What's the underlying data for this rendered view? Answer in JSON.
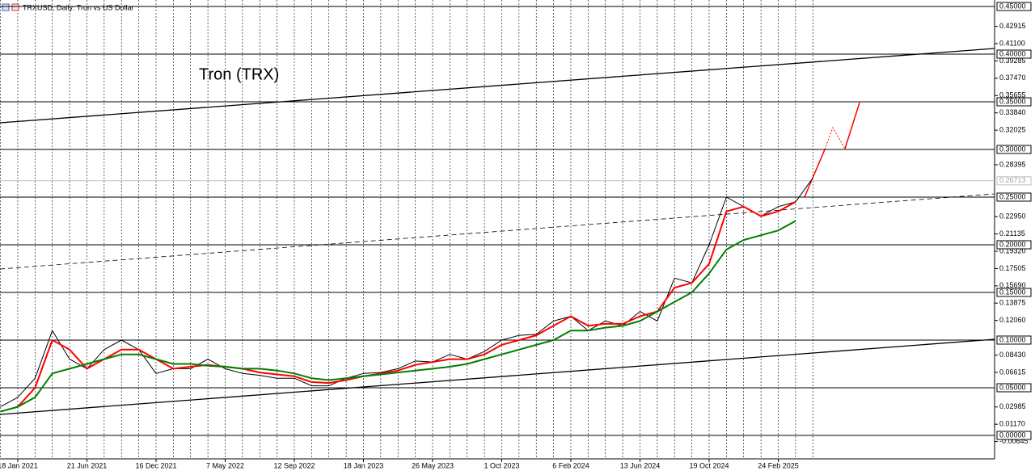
{
  "header": "TRXUSD, Daily:  Tron vs US Dollar",
  "chart_data": {
    "type": "line",
    "title": "Tron (TRX)",
    "categories": [
      null,
      "18 Jan 2021",
      null,
      null,
      null,
      "21 Jun 2021",
      null,
      null,
      null,
      "16 Dec 2021",
      null,
      null,
      null,
      "7 May 2022",
      null,
      null,
      null,
      "12 Sep 2022",
      null,
      null,
      null,
      "18 Jan 2023",
      null,
      null,
      null,
      "26 May 2023",
      null,
      null,
      null,
      "1 Oct 2023",
      null,
      null,
      null,
      "6 Feb 2024",
      null,
      null,
      null,
      "13 Jun 2024",
      null,
      null,
      null,
      "19 Oct 2024",
      null,
      null,
      null,
      "24 Feb 2025",
      null,
      null
    ],
    "series": [
      {
        "color": "#000000",
        "width": 1,
        "values": [
          0.03,
          0.04,
          0.06,
          0.11,
          0.08,
          0.07,
          0.09,
          0.1,
          0.09,
          0.065,
          0.07,
          0.07,
          0.08,
          0.07,
          0.065,
          0.063,
          0.06,
          0.06,
          0.052,
          0.052,
          0.06,
          0.065,
          0.066,
          0.07,
          0.078,
          0.077,
          0.085,
          0.08,
          0.088,
          0.1,
          0.105,
          0.106,
          0.12,
          0.125,
          0.11,
          0.12,
          0.115,
          0.13,
          0.12,
          0.165,
          0.16,
          0.2,
          0.25,
          0.24,
          0.23,
          0.24,
          0.245,
          0.27
        ]
      },
      {
        "color": "#ff0000",
        "width": 2,
        "values": [
          null,
          0.03,
          0.05,
          0.1,
          0.09,
          0.07,
          0.08,
          0.09,
          0.09,
          0.08,
          0.07,
          0.072,
          0.074,
          0.072,
          0.07,
          0.066,
          0.064,
          0.062,
          0.056,
          0.055,
          0.058,
          0.062,
          0.065,
          0.068,
          0.074,
          0.077,
          0.08,
          0.08,
          0.085,
          0.095,
          0.1,
          0.105,
          0.115,
          0.125,
          0.115,
          0.117,
          0.117,
          0.125,
          0.13,
          0.155,
          0.16,
          0.18,
          0.235,
          0.24,
          0.23,
          0.235,
          0.245,
          null
        ]
      },
      {
        "color": "#008000",
        "width": 2,
        "values": [
          0.025,
          0.03,
          0.04,
          0.065,
          0.07,
          0.075,
          0.08,
          0.085,
          0.085,
          0.08,
          0.075,
          0.075,
          0.073,
          0.072,
          0.07,
          0.07,
          0.068,
          0.065,
          0.06,
          0.058,
          0.06,
          0.062,
          0.064,
          0.066,
          0.068,
          0.07,
          0.072,
          0.075,
          0.08,
          0.085,
          0.09,
          0.095,
          0.1,
          0.11,
          0.11,
          0.113,
          0.115,
          0.12,
          0.13,
          0.14,
          0.15,
          0.17,
          0.195,
          0.205,
          0.21,
          0.215,
          0.225,
          null
        ]
      }
    ],
    "ylim": [
      -0.0246,
      0.4568
    ],
    "yticks": [
      {
        "value": 0.42915,
        "label": "0.42915"
      },
      {
        "value": 0.411,
        "label": "0.41100"
      },
      {
        "value": 0.39285,
        "label": "0.39285"
      },
      {
        "value": 0.3747,
        "label": "0.37470"
      },
      {
        "value": 0.35655,
        "label": "0.35655"
      },
      {
        "value": 0.3384,
        "label": "0.33840"
      },
      {
        "value": 0.32025,
        "label": "0.32025"
      },
      {
        "value": 0.28395,
        "label": "0.28395"
      },
      {
        "value": 0.2295,
        "label": "0.22950"
      },
      {
        "value": 0.21135,
        "label": "0.21135"
      },
      {
        "value": 0.1932,
        "label": "0.19320"
      },
      {
        "value": 0.17505,
        "label": "0.17505"
      },
      {
        "value": 0.1569,
        "label": "0.15690"
      },
      {
        "value": 0.13875,
        "label": "0.13875"
      },
      {
        "value": 0.1206,
        "label": "0.12060"
      },
      {
        "value": 0.0843,
        "label": "0.08430"
      },
      {
        "value": 0.06615,
        "label": "0.06615"
      },
      {
        "value": 0.02985,
        "label": "0.02985"
      },
      {
        "value": 0.0117,
        "label": "0.01170"
      },
      {
        "value": -0.00645,
        "label": "-0.00645"
      }
    ],
    "levels": [
      {
        "value": 0.45,
        "label": "0.45000"
      },
      {
        "value": 0.4,
        "label": "0.40000"
      },
      {
        "value": 0.35,
        "label": "0.35000"
      },
      {
        "value": 0.3,
        "label": "0.30000"
      },
      {
        "value": 0.25,
        "label": "0.25000"
      },
      {
        "value": 0.2,
        "label": "0.20000"
      },
      {
        "value": 0.15,
        "label": "0.15000"
      },
      {
        "value": 0.1,
        "label": "0.10000"
      },
      {
        "value": 0.05,
        "label": "0.05000"
      },
      {
        "value": 0,
        "label": "0.00000"
      }
    ],
    "last_price": {
      "value": 0.26713,
      "label": "0.26713"
    },
    "grid": true
  }
}
